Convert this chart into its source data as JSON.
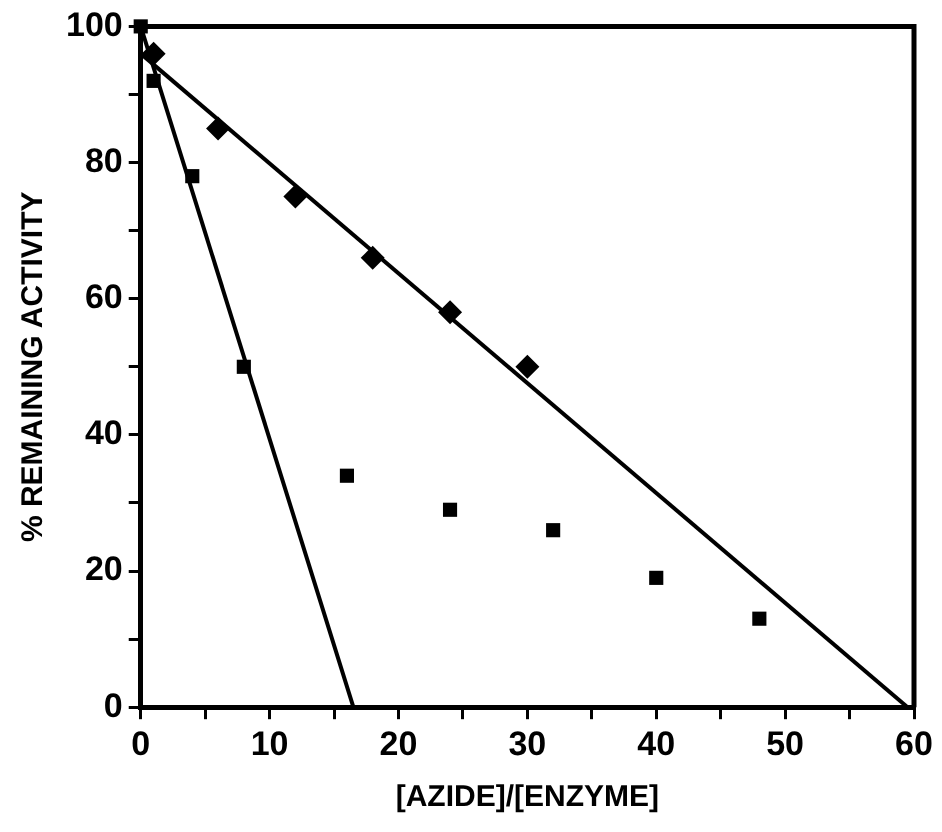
{
  "chart_data": {
    "type": "scatter",
    "xlabel": "[AZIDE]/[ENZYME]",
    "ylabel": "% REMAINING ACTIVITY",
    "xlim": [
      0,
      60
    ],
    "ylim": [
      0,
      100
    ],
    "xticks": [
      0,
      {
        "value": 5,
        "label": null
      },
      10,
      {
        "value": 15,
        "label": null
      },
      20,
      {
        "value": 25,
        "label": null
      },
      30,
      {
        "value": 35,
        "label": null
      },
      40,
      {
        "value": 45,
        "label": null
      },
      50,
      {
        "value": 55,
        "label": null
      },
      60
    ],
    "yticks": [
      0,
      {
        "value": 10,
        "label": null
      },
      20,
      {
        "value": 30,
        "label": null
      },
      40,
      {
        "value": 50,
        "label": null
      },
      60,
      {
        "value": 70,
        "label": null
      },
      80,
      {
        "value": 90,
        "label": null
      },
      100
    ],
    "grid": false,
    "legend": false,
    "series": [
      {
        "marker": "diamond",
        "color": "#000000",
        "x": [
          1,
          6,
          12,
          18,
          24,
          30
        ],
        "values": [
          96,
          85,
          75,
          66,
          58,
          50
        ]
      },
      {
        "marker": "square",
        "color": "#000000",
        "x": [
          0,
          1,
          4,
          8,
          16,
          24,
          32,
          40,
          48
        ],
        "values": [
          100,
          92,
          78,
          50,
          34,
          29,
          26,
          19,
          13
        ]
      },
      {
        "type": "line",
        "marker": "none",
        "color": "#000000",
        "x": [
          0,
          59.5
        ],
        "values": [
          96,
          0
        ]
      },
      {
        "type": "line",
        "marker": "none",
        "color": "#000000",
        "x": [
          0,
          16.5
        ],
        "values": [
          100,
          0
        ]
      }
    ]
  }
}
